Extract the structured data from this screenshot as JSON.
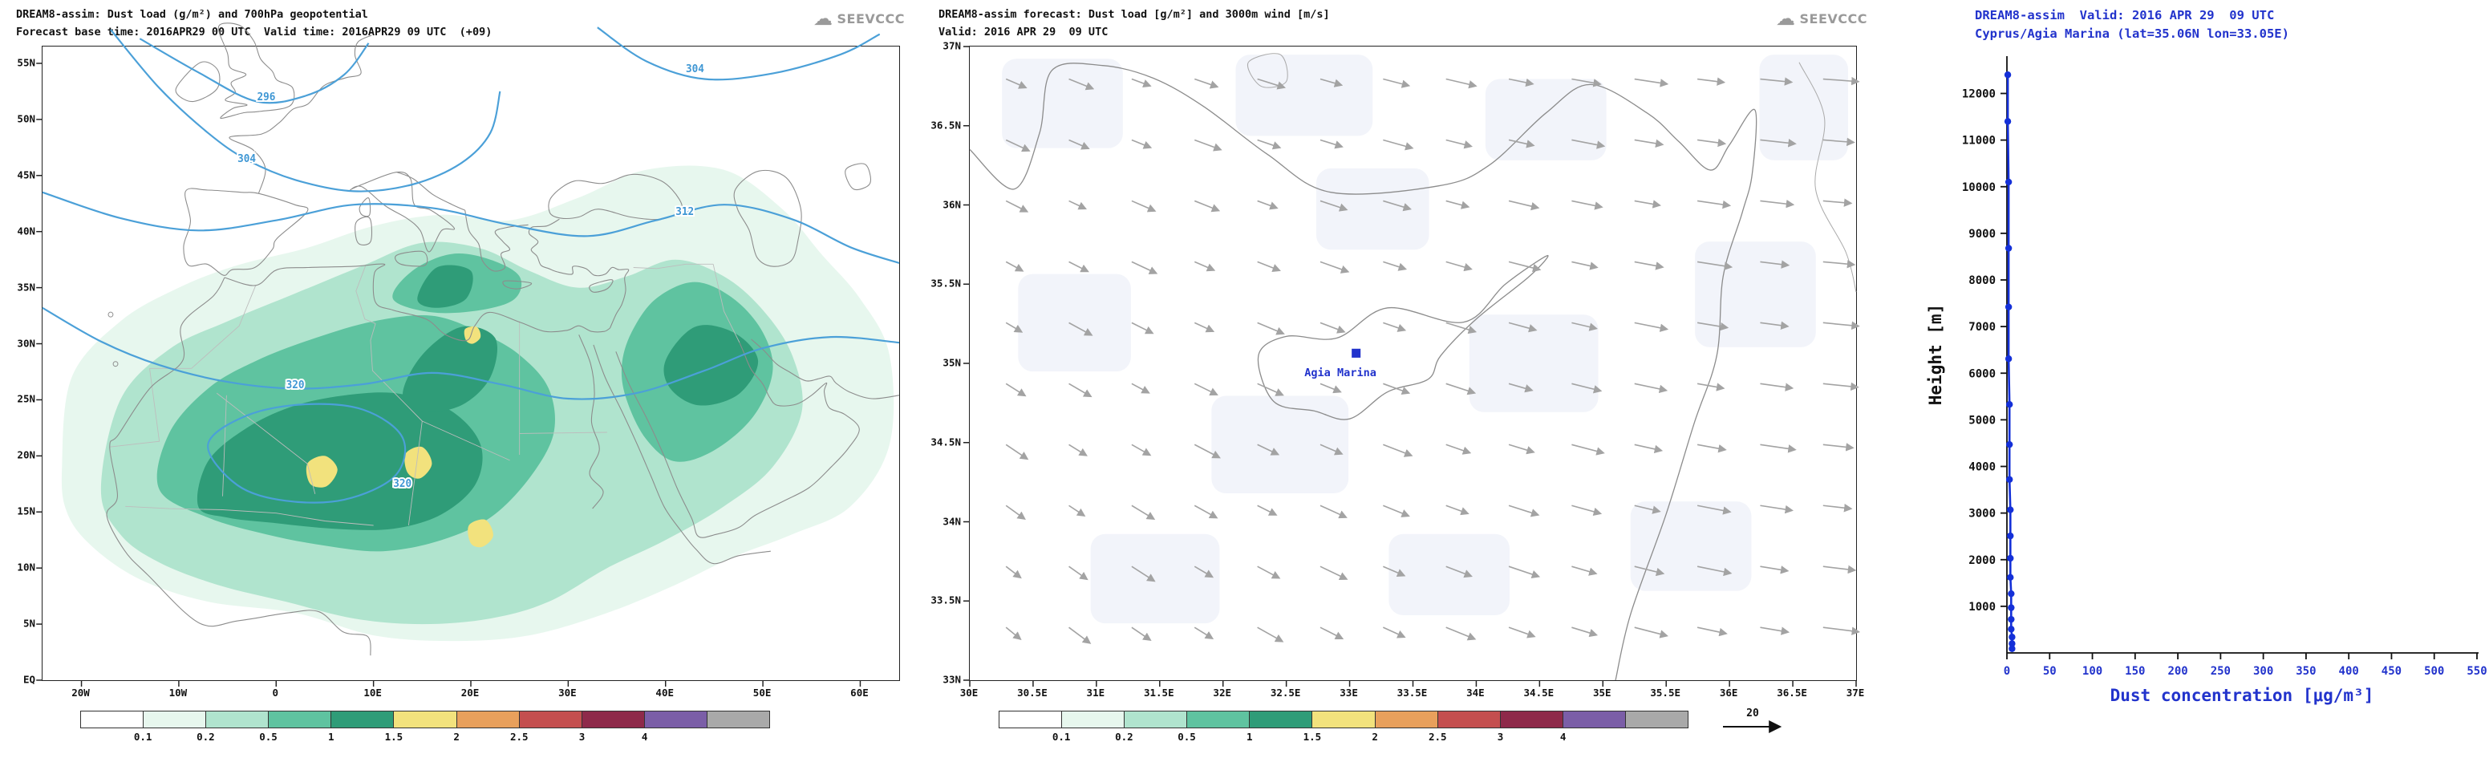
{
  "logo": {
    "text": "SEEVCCC"
  },
  "colors": {
    "plot_blue": "#2233cc",
    "contour_blue": "#4ba0d8",
    "arrow_gray": "#a3a3a3",
    "logo_gray": "#9a9a9a"
  },
  "colorbar": {
    "labels": [
      "0.1",
      "0.2",
      "0.5",
      "1",
      "1.5",
      "2",
      "2.5",
      "3",
      "4"
    ],
    "colors": [
      "#ffffff",
      "#e7f7ee",
      "#b0e4ce",
      "#5fc3a0",
      "#2f9c78",
      "#f2e27d",
      "#e8a05c",
      "#c44f4f",
      "#8e2a4a",
      "#7b5ea7",
      "#a9a9a9"
    ]
  },
  "left_panel": {
    "title_line1": "DREAM8-assim: Dust load (g/m²) and 700hPa geopotential",
    "title_line2": "Forecast base time: 2016APR29 00 UTC  Valid time: 2016APR29 09 UTC  (+09)",
    "y_ticks": [
      "55N",
      "50N",
      "45N",
      "40N",
      "35N",
      "30N",
      "25N",
      "20N",
      "15N",
      "10N",
      "5N",
      "EQ"
    ],
    "x_ticks": [
      "20W",
      "10W",
      "0",
      "10E",
      "20E",
      "30E",
      "40E",
      "50E",
      "60E"
    ],
    "contour_labels": [
      "296",
      "304",
      "304",
      "312",
      "320",
      "320"
    ]
  },
  "mid_panel": {
    "title_line1": "DREAM8-assim forecast: Dust load [g/m²] and 3000m wind [m/s]",
    "title_line2": "Valid: 2016 APR 29  09 UTC",
    "y_ticks": [
      "37N",
      "36.5N",
      "36N",
      "35.5N",
      "35N",
      "34.5N",
      "34N",
      "33.5N",
      "33N"
    ],
    "x_ticks": [
      "30E",
      "30.5E",
      "31E",
      "31.5E",
      "32E",
      "32.5E",
      "33E",
      "33.5E",
      "34E",
      "34.5E",
      "35E",
      "35.5E",
      "36E",
      "36.5E",
      "37E"
    ],
    "station_label": "Agia Marina",
    "wind_legend": "20"
  },
  "right_panel": {
    "title_line1": "DREAM8-assim  Valid: 2016 APR 29  09 UTC",
    "title_line2": "Cyprus/Agia Marina (lat=35.06N lon=33.05E)",
    "ylabel": "Height [m]",
    "xlabel": "Dust concentration [μg/m³]",
    "y_ticks": [
      "1000",
      "2000",
      "3000",
      "4000",
      "5000",
      "6000",
      "7000",
      "8000",
      "9000",
      "10000",
      "11000",
      "12000"
    ],
    "x_ticks": [
      "0",
      "50",
      "100",
      "150",
      "200",
      "250",
      "300",
      "350",
      "400",
      "450",
      "500",
      "550"
    ]
  },
  "chart_data": [
    {
      "id": "dust-load-geopotential-map",
      "type": "heatmap",
      "title": "DREAM8-assim: Dust load (g/m²) and 700hPa geopotential",
      "subtitle": "Forecast base time: 2016APR29 00 UTC  Valid time: 2016APR29 09 UTC  (+09)",
      "lon_ticks": [
        "20W",
        "10W",
        "0",
        "10E",
        "20E",
        "30E",
        "40E",
        "50E",
        "60E"
      ],
      "lat_ticks": [
        "EQ",
        "5N",
        "10N",
        "15N",
        "20N",
        "25N",
        "30N",
        "35N",
        "40N",
        "45N",
        "50N",
        "55N"
      ],
      "dust_load_levels_g_m2": [
        0.1,
        0.2,
        0.5,
        1,
        1.5,
        2,
        2.5,
        3,
        4
      ],
      "level_colors": [
        "#ffffff",
        "#e7f7ee",
        "#b0e4ce",
        "#5fc3a0",
        "#2f9c78",
        "#f2e27d",
        "#e8a05c",
        "#c44f4f",
        "#8e2a4a",
        "#7b5ea7",
        "#a9a9a9"
      ],
      "geopotential_contour_labels_dam": [
        296,
        304,
        304,
        312,
        320,
        320
      ],
      "legend_position": "bottom"
    },
    {
      "id": "cyprus-dust-wind-map",
      "type": "heatmap",
      "title": "DREAM8-assim forecast: Dust load [g/m²] and 3000m wind [m/s]",
      "subtitle": "Valid: 2016 APR 29  09 UTC",
      "lon_range_deg_e": [
        30,
        37
      ],
      "lat_range_deg_n": [
        33,
        37
      ],
      "station": {
        "name": "Agia Marina",
        "lat": "35.06N",
        "lon": "33.05E"
      },
      "wind_reference_m_s": 20,
      "dust_load_levels_g_m2": [
        0.1,
        0.2,
        0.5,
        1,
        1.5,
        2,
        2.5,
        3,
        4
      ],
      "legend_position": "bottom"
    },
    {
      "id": "dust-concentration-profile",
      "type": "line",
      "title": "DREAM8-assim  Valid: 2016 APR 29  09 UTC",
      "subtitle": "Cyprus/Agia Marina (lat=35.06N lon=33.05E)",
      "xlabel": "Dust concentration [μg/m³]",
      "ylabel": "Height [m]",
      "xlim": [
        0,
        550
      ],
      "ylim": [
        0,
        12800
      ],
      "x_ticks": [
        0,
        50,
        100,
        150,
        200,
        250,
        300,
        350,
        400,
        450,
        500,
        550
      ],
      "y_ticks": [
        1000,
        2000,
        3000,
        4000,
        5000,
        6000,
        7000,
        8000,
        9000,
        10000,
        11000,
        12000
      ],
      "series": [
        {
          "name": "dust_concentration",
          "x": [
            6,
            6,
            6,
            5,
            5,
            5,
            5,
            4,
            4,
            4,
            4,
            3,
            3,
            3,
            2,
            2,
            2,
            2,
            1,
            1
          ],
          "y": [
            90,
            200,
            340,
            510,
            720,
            970,
            1270,
            1620,
            2030,
            2510,
            3070,
            3720,
            4470,
            5330,
            6310,
            7420,
            8680,
            10100,
            11400,
            12400
          ]
        }
      ],
      "line_color": "#1430d8",
      "marker": "circle"
    }
  ]
}
